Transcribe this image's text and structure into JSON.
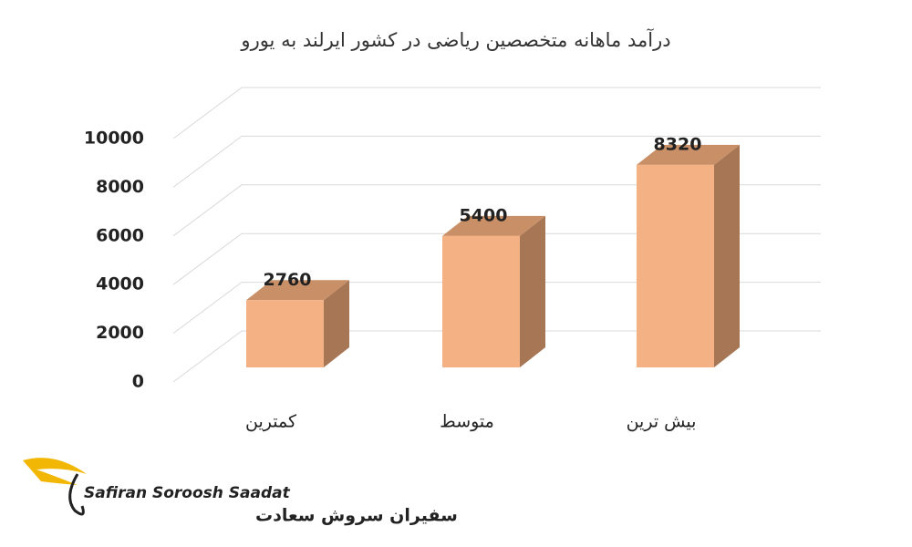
{
  "chart_data": {
    "type": "bar3d",
    "title": "درآمد ماهانه متخصصین ریاضی در کشور ایرلند به یورو",
    "categories": [
      "کمترین",
      "متوسط",
      "بیش ترین"
    ],
    "values": [
      2760,
      5400,
      8320
    ],
    "color": "#f4b183",
    "ylim": [
      0,
      10000
    ],
    "yticks": [
      0,
      2000,
      4000,
      6000,
      8000,
      10000
    ],
    "grid": true
  },
  "logo": {
    "latin": "Safiran Soroosh Saadat",
    "persian": "سفیران سروش سعادت"
  }
}
